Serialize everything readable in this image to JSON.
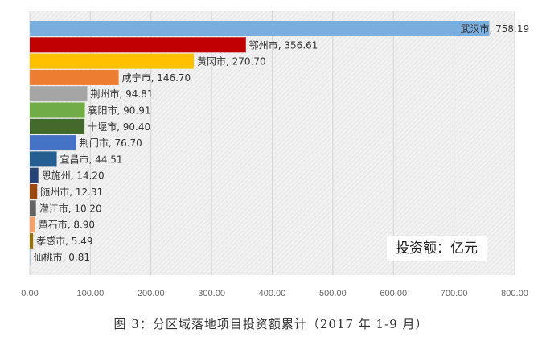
{
  "chart_data": {
    "type": "bar",
    "orientation": "horizontal",
    "categories": [
      "武汉市",
      "鄂州市",
      "黄冈市",
      "咸宁市",
      "荆州市",
      "襄阳市",
      "十堰市",
      "荆门市",
      "宜昌市",
      "恩施州",
      "随州市",
      "潜江市",
      "黄石市",
      "孝感市",
      "仙桃市"
    ],
    "values": [
      758.19,
      356.61,
      270.7,
      146.7,
      94.81,
      90.91,
      90.4,
      76.7,
      44.51,
      14.2,
      12.31,
      10.2,
      8.9,
      5.49,
      0.81
    ],
    "colors": [
      "#7aaede",
      "#c00000",
      "#ffc000",
      "#ed7d31",
      "#a5a5a5",
      "#70ad47",
      "#44692c",
      "#4472c4",
      "#255e91",
      "#264478",
      "#9e480e",
      "#636363",
      "#f4a26c",
      "#997300",
      "#b4c7e7"
    ],
    "xlim": [
      0,
      800
    ],
    "xticks": [
      "0.00",
      "100.00",
      "200.00",
      "300.00",
      "400.00",
      "500.00",
      "600.00",
      "700.00",
      "800.00"
    ],
    "grid": true,
    "unit_label": "投资额：亿元",
    "caption": "图 3：分区域落地项目投资额累计（2017 年 1-9 月）"
  }
}
